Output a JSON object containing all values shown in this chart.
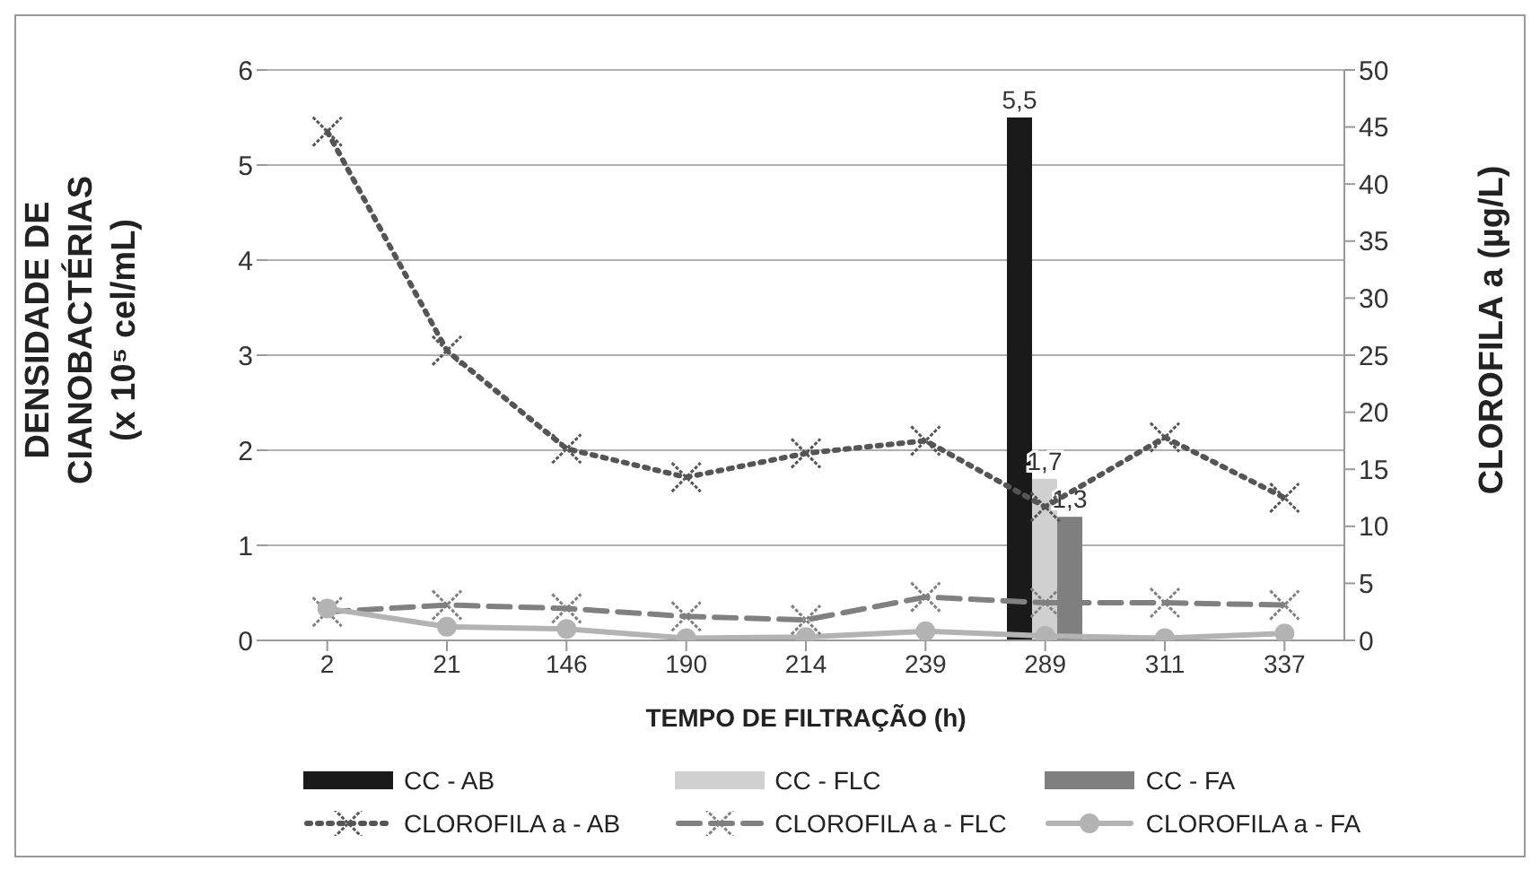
{
  "chart_data": {
    "type": "bar",
    "xlabel": "TEMPO DE FILTRAÇÃO (h)",
    "ylabel": "DENSIDADE DE CIANOBACTÉRIAS (x 10⁵ cel/mL)",
    "y2label": "CLOROFILA a (µg/L)",
    "categories": [
      "2",
      "21",
      "146",
      "190",
      "214",
      "239",
      "289",
      "311",
      "337"
    ],
    "series": [
      {
        "name": "CC - AB",
        "color": "#1a1a1a",
        "values": [
          null,
          null,
          null,
          null,
          null,
          null,
          5.5,
          null,
          null
        ],
        "value_labels": [
          null,
          null,
          null,
          null,
          null,
          null,
          "5,5",
          null,
          null
        ]
      },
      {
        "name": "CC - FLC",
        "color": "#d0d0d0",
        "values": [
          null,
          null,
          null,
          null,
          null,
          null,
          1.7,
          null,
          null
        ],
        "value_labels": [
          null,
          null,
          null,
          null,
          null,
          null,
          "1,7",
          null,
          null
        ]
      },
      {
        "name": "CC - FA",
        "color": "#7f7f7f",
        "values": [
          null,
          null,
          null,
          null,
          null,
          null,
          1.3,
          null,
          null
        ],
        "value_labels": [
          null,
          null,
          null,
          null,
          null,
          null,
          "1,3",
          null,
          null
        ]
      },
      {
        "name": "CLOROFILA a - AB",
        "type": "line",
        "axis": "y2",
        "color": "#555555",
        "marker": "cross",
        "line_style": "dotted",
        "values": [
          44.6,
          25.4,
          16.8,
          14.3,
          16.4,
          17.5,
          11.7,
          17.8,
          12.5
        ]
      },
      {
        "name": "CLOROFILA a - FLC",
        "type": "line",
        "axis": "y2",
        "color": "#808080",
        "marker": "cross",
        "line_style": "dashed",
        "values": [
          2.5,
          3.1,
          2.8,
          2.1,
          1.8,
          3.8,
          3.3,
          3.3,
          3.1
        ]
      },
      {
        "name": "CLOROFILA a - FA",
        "type": "line",
        "axis": "y2",
        "color": "#b3b3b3",
        "marker": "circle",
        "line_style": "solid",
        "values": [
          2.8,
          1.2,
          1.0,
          0.2,
          0.3,
          0.8,
          0.4,
          0.2,
          0.6
        ]
      }
    ],
    "ylim": [
      0,
      6
    ],
    "yticks": [
      0,
      1,
      2,
      3,
      4,
      5,
      6
    ],
    "y2lim": [
      0,
      50
    ],
    "y2ticks": [
      0,
      5,
      10,
      15,
      20,
      25,
      30,
      35,
      40,
      45,
      50
    ],
    "grid": "y",
    "legend": "bottom"
  }
}
